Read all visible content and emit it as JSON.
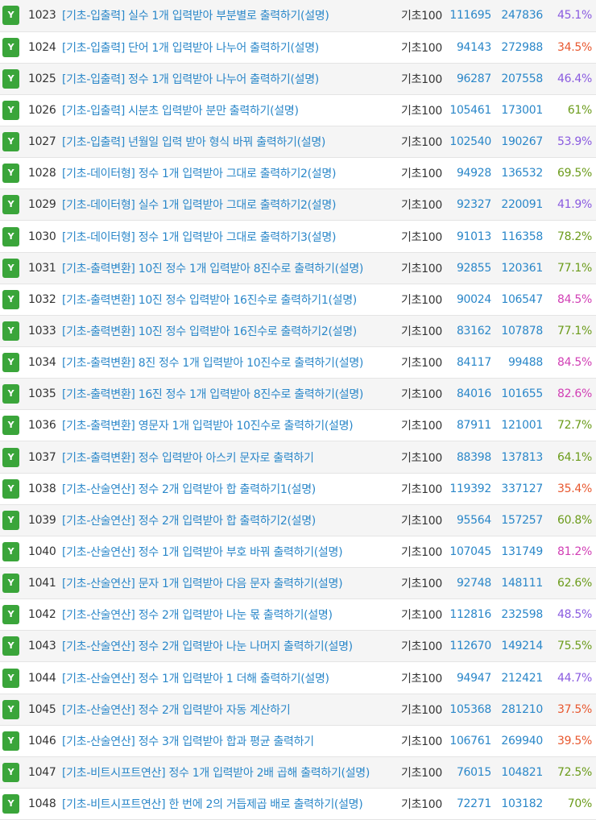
{
  "colors": {
    "badge": "#3aa53a",
    "link": "#2a87c9",
    "rate_high": "#6b9b1a",
    "rate_mid": "#8a5be0",
    "rate_low": "#e8572e"
  },
  "problems": [
    {
      "badge": "Y",
      "id": "1023",
      "title": "[기초-입출력] 실수 1개 입력받아 부분별로 출력하기(설명)",
      "category": "기초100",
      "solved": "111695",
      "submissions": "247836",
      "rate": "45.1%",
      "rate_color": "#8a5be0"
    },
    {
      "badge": "Y",
      "id": "1024",
      "title": "[기초-입출력] 단어 1개 입력받아 나누어 출력하기(설명)",
      "category": "기초100",
      "solved": "94143",
      "submissions": "272988",
      "rate": "34.5%",
      "rate_color": "#e8572e"
    },
    {
      "badge": "Y",
      "id": "1025",
      "title": "[기초-입출력] 정수 1개 입력받아 나누어 출력하기(설명)",
      "category": "기초100",
      "solved": "96287",
      "submissions": "207558",
      "rate": "46.4%",
      "rate_color": "#8a5be0"
    },
    {
      "badge": "Y",
      "id": "1026",
      "title": "[기초-입출력] 시분초 입력받아 분만 출력하기(설명)",
      "category": "기초100",
      "solved": "105461",
      "submissions": "173001",
      "rate": "61%",
      "rate_color": "#6b9b1a"
    },
    {
      "badge": "Y",
      "id": "1027",
      "title": "[기초-입출력] 년월일 입력 받아 형식 바꿔 출력하기(설명)",
      "category": "기초100",
      "solved": "102540",
      "submissions": "190267",
      "rate": "53.9%",
      "rate_color": "#8a5be0"
    },
    {
      "badge": "Y",
      "id": "1028",
      "title": "[기초-데이터형] 정수 1개 입력받아 그대로 출력하기2(설명)",
      "category": "기초100",
      "solved": "94928",
      "submissions": "136532",
      "rate": "69.5%",
      "rate_color": "#6b9b1a"
    },
    {
      "badge": "Y",
      "id": "1029",
      "title": "[기초-데이터형] 실수 1개 입력받아 그대로 출력하기2(설명)",
      "category": "기초100",
      "solved": "92327",
      "submissions": "220091",
      "rate": "41.9%",
      "rate_color": "#8a5be0"
    },
    {
      "badge": "Y",
      "id": "1030",
      "title": "[기초-데이터형] 정수 1개 입력받아 그대로 출력하기3(설명)",
      "category": "기초100",
      "solved": "91013",
      "submissions": "116358",
      "rate": "78.2%",
      "rate_color": "#6b9b1a"
    },
    {
      "badge": "Y",
      "id": "1031",
      "title": "[기초-출력변환] 10진 정수 1개 입력받아 8진수로 출력하기(설명)",
      "category": "기초100",
      "solved": "92855",
      "submissions": "120361",
      "rate": "77.1%",
      "rate_color": "#6b9b1a"
    },
    {
      "badge": "Y",
      "id": "1032",
      "title": "[기초-출력변환] 10진 정수 입력받아 16진수로 출력하기1(설명)",
      "category": "기초100",
      "solved": "90024",
      "submissions": "106547",
      "rate": "84.5%",
      "rate_color": "#d13fb5"
    },
    {
      "badge": "Y",
      "id": "1033",
      "title": "[기초-출력변환] 10진 정수 입력받아 16진수로 출력하기2(설명)",
      "category": "기초100",
      "solved": "83162",
      "submissions": "107878",
      "rate": "77.1%",
      "rate_color": "#6b9b1a"
    },
    {
      "badge": "Y",
      "id": "1034",
      "title": "[기초-출력변환] 8진 정수 1개 입력받아 10진수로 출력하기(설명)",
      "category": "기초100",
      "solved": "84117",
      "submissions": "99488",
      "rate": "84.5%",
      "rate_color": "#d13fb5"
    },
    {
      "badge": "Y",
      "id": "1035",
      "title": "[기초-출력변환] 16진 정수 1개 입력받아 8진수로 출력하기(설명)",
      "category": "기초100",
      "solved": "84016",
      "submissions": "101655",
      "rate": "82.6%",
      "rate_color": "#d13fb5"
    },
    {
      "badge": "Y",
      "id": "1036",
      "title": "[기초-출력변환] 영문자 1개 입력받아 10진수로 출력하기(설명)",
      "category": "기초100",
      "solved": "87911",
      "submissions": "121001",
      "rate": "72.7%",
      "rate_color": "#6b9b1a"
    },
    {
      "badge": "Y",
      "id": "1037",
      "title": "[기초-출력변환] 정수 입력받아 아스키 문자로 출력하기",
      "category": "기초100",
      "solved": "88398",
      "submissions": "137813",
      "rate": "64.1%",
      "rate_color": "#6b9b1a"
    },
    {
      "badge": "Y",
      "id": "1038",
      "title": "[기초-산술연산] 정수 2개 입력받아 합 출력하기1(설명)",
      "category": "기초100",
      "solved": "119392",
      "submissions": "337127",
      "rate": "35.4%",
      "rate_color": "#e8572e"
    },
    {
      "badge": "Y",
      "id": "1039",
      "title": "[기초-산술연산] 정수 2개 입력받아 합 출력하기2(설명)",
      "category": "기초100",
      "solved": "95564",
      "submissions": "157257",
      "rate": "60.8%",
      "rate_color": "#6b9b1a"
    },
    {
      "badge": "Y",
      "id": "1040",
      "title": "[기초-산술연산] 정수 1개 입력받아 부호 바꿔 출력하기(설명)",
      "category": "기초100",
      "solved": "107045",
      "submissions": "131749",
      "rate": "81.2%",
      "rate_color": "#d13fb5"
    },
    {
      "badge": "Y",
      "id": "1041",
      "title": "[기초-산술연산] 문자 1개 입력받아 다음 문자 출력하기(설명)",
      "category": "기초100",
      "solved": "92748",
      "submissions": "148111",
      "rate": "62.6%",
      "rate_color": "#6b9b1a"
    },
    {
      "badge": "Y",
      "id": "1042",
      "title": "[기초-산술연산] 정수 2개 입력받아 나눈 몫 출력하기(설명)",
      "category": "기초100",
      "solved": "112816",
      "submissions": "232598",
      "rate": "48.5%",
      "rate_color": "#8a5be0"
    },
    {
      "badge": "Y",
      "id": "1043",
      "title": "[기초-산술연산] 정수 2개 입력받아 나눈 나머지 출력하기(설명)",
      "category": "기초100",
      "solved": "112670",
      "submissions": "149214",
      "rate": "75.5%",
      "rate_color": "#6b9b1a"
    },
    {
      "badge": "Y",
      "id": "1044",
      "title": "[기초-산술연산] 정수 1개 입력받아 1 더해 출력하기(설명)",
      "category": "기초100",
      "solved": "94947",
      "submissions": "212421",
      "rate": "44.7%",
      "rate_color": "#8a5be0"
    },
    {
      "badge": "Y",
      "id": "1045",
      "title": "[기초-산술연산] 정수 2개 입력받아 자동 계산하기",
      "category": "기초100",
      "solved": "105368",
      "submissions": "281210",
      "rate": "37.5%",
      "rate_color": "#e8572e"
    },
    {
      "badge": "Y",
      "id": "1046",
      "title": "[기초-산술연산] 정수 3개 입력받아 합과 평균 출력하기",
      "category": "기초100",
      "solved": "106761",
      "submissions": "269940",
      "rate": "39.5%",
      "rate_color": "#e8572e"
    },
    {
      "badge": "Y",
      "id": "1047",
      "title": "[기초-비트시프트연산] 정수 1개 입력받아 2배 곱해 출력하기(설명)",
      "category": "기초100",
      "solved": "76015",
      "submissions": "104821",
      "rate": "72.5%",
      "rate_color": "#6b9b1a"
    },
    {
      "badge": "Y",
      "id": "1048",
      "title": "[기초-비트시프트연산] 한 번에 2의 거듭제곱 배로 출력하기(설명)",
      "category": "기초100",
      "solved": "72271",
      "submissions": "103182",
      "rate": "70%",
      "rate_color": "#6b9b1a"
    }
  ]
}
